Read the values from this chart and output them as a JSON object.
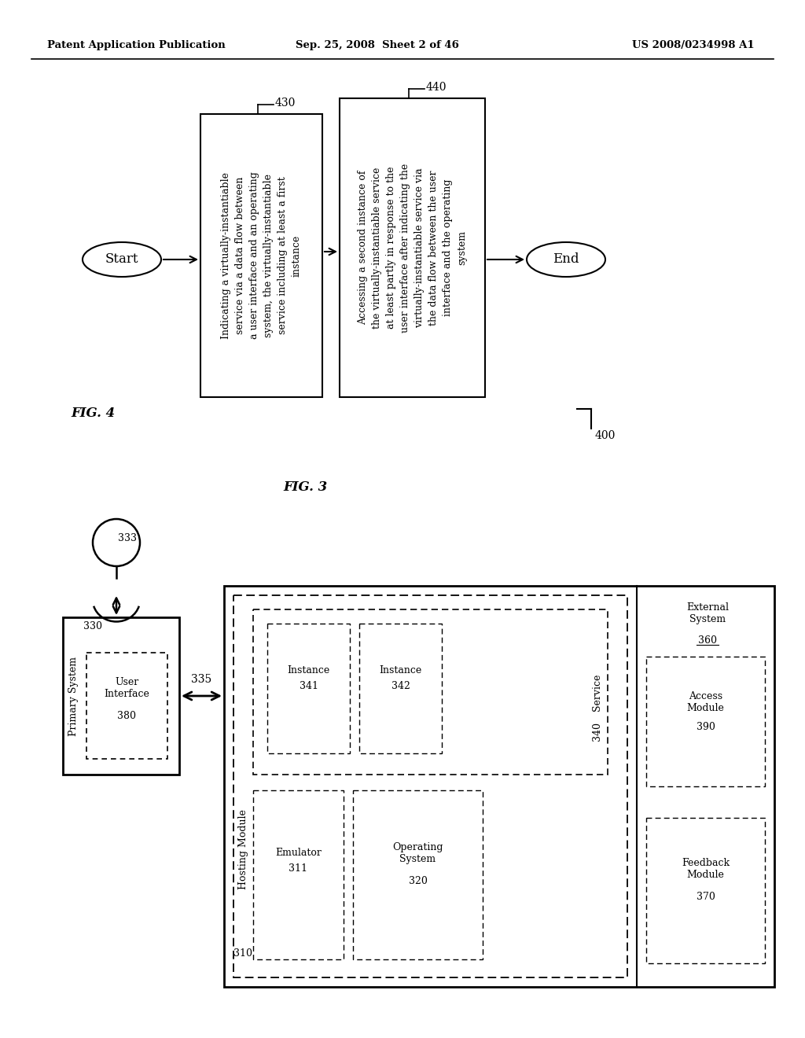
{
  "bg_color": "#ffffff",
  "header_left": "Patent Application Publication",
  "header_center": "Sep. 25, 2008  Sheet 2 of 46",
  "header_right": "US 2008/0234998 A1",
  "fig4_label": "FIG. 4",
  "fig3_label": "FIG. 3",
  "fig4_400_label": "400",
  "fig4_start_text": "Start",
  "fig4_end_text": "End",
  "fig4_box1_label": "430",
  "fig4_box1_text": "Indicating a virtually-instantiable\nservice via a data flow between\na user interface and an operating\nsystem, the virtually-instantiable\nservice including at least a first\ninstance",
  "fig4_box2_label": "440",
  "fig4_box2_text": "Accessing a second instance of\nthe virtually-instantiable service\nat least partly in response to the\nuser interface after indicating the\nvirtually-instantiable service via\nthe data flow between the user\ninterface and the operating\nsystem",
  "fig3_nodes": {
    "primary_system": {
      "label": "Primary System",
      "num": "330"
    },
    "user_interface": {
      "label": "User\nInterface",
      "num": "380"
    },
    "hosting_module": {
      "label": "Hosting Module",
      "num": "310"
    },
    "service": {
      "label": "Service",
      "num": "340"
    },
    "instance1": {
      "label": "Instance",
      "num": "341"
    },
    "instance2": {
      "label": "Instance",
      "num": "342"
    },
    "emulator": {
      "label": "Emulator",
      "num": "311"
    },
    "operating_system": {
      "label": "Operating\nSystem",
      "num": "320"
    },
    "external_system": {
      "label": "External\nSystem",
      "num": "360"
    },
    "access_module": {
      "label": "Access\nModule",
      "num": "390"
    },
    "feedback_module": {
      "label": "Feedback\nModule",
      "num": "370"
    },
    "person_num": "333",
    "arrow_label": "335"
  }
}
